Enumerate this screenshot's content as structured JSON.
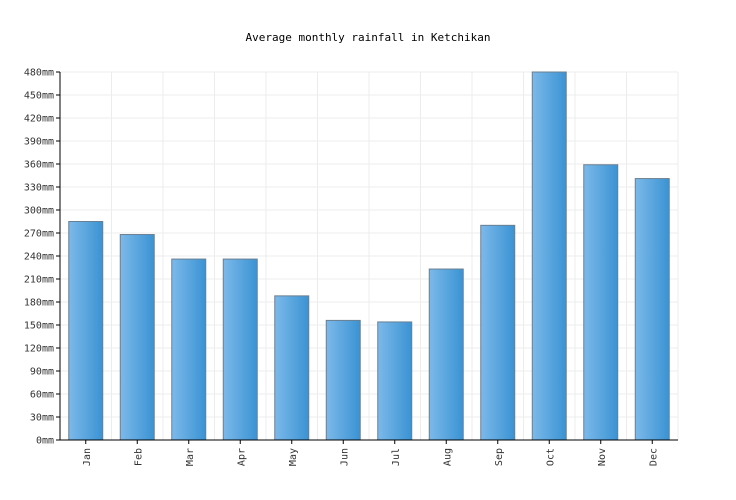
{
  "chart_data": {
    "type": "bar",
    "title": "Average monthly rainfall in Ketchikan",
    "xlabel": "",
    "ylabel": "",
    "unit": "mm",
    "categories": [
      "Jan",
      "Feb",
      "Mar",
      "Apr",
      "May",
      "Jun",
      "Jul",
      "Aug",
      "Sep",
      "Oct",
      "Nov",
      "Dec"
    ],
    "values": [
      285,
      268,
      236,
      236,
      188,
      156,
      154,
      223,
      280,
      480,
      359,
      341
    ],
    "ylim": [
      0,
      480
    ],
    "yticks": [
      "0mm",
      "30mm",
      "60mm",
      "90mm",
      "120mm",
      "150mm",
      "180mm",
      "210mm",
      "240mm",
      "270mm",
      "300mm",
      "330mm",
      "360mm",
      "390mm",
      "420mm",
      "450mm",
      "480mm"
    ],
    "grid": true,
    "legend": "none",
    "colors": {
      "bar_light": "#7cb9ea",
      "bar_dark": "#3a93d3",
      "bar_edge": "#6a7f92"
    }
  }
}
